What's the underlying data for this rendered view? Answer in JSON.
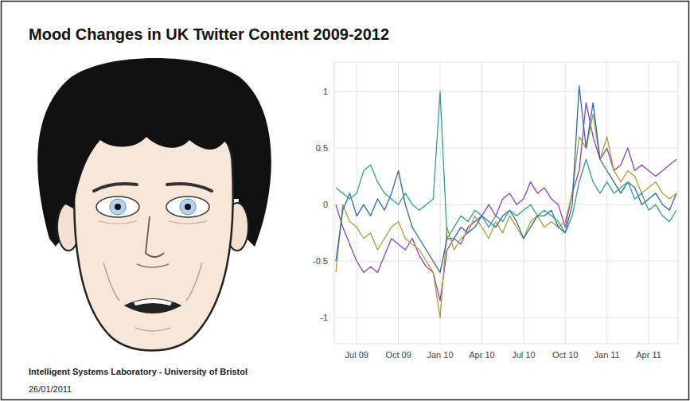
{
  "chart_data": {
    "type": "line",
    "title": "Mood Changes in UK Twitter Content 2009-2012",
    "annotations": [
      "Intelligent Systems Laboratory - University of Bristol",
      "26/01/2011"
    ],
    "categories": [
      null,
      null,
      null,
      "Jul 09",
      null,
      null,
      null,
      null,
      null,
      "Oct 09",
      null,
      null,
      null,
      null,
      null,
      "Jan 10",
      null,
      null,
      null,
      null,
      null,
      "Apr 10",
      null,
      null,
      null,
      null,
      null,
      "Jul 10",
      null,
      null,
      null,
      null,
      null,
      "Oct 10",
      null,
      null,
      null,
      null,
      null,
      "Jan 11",
      null,
      null,
      null,
      null,
      null,
      "Apr 11",
      null,
      null,
      null,
      null
    ],
    "series": [
      {
        "color": "#8a46b4",
        "values": [
          0.0,
          -0.2,
          -0.35,
          -0.5,
          -0.6,
          -0.55,
          -0.6,
          -0.45,
          -0.3,
          -0.35,
          -0.4,
          -0.3,
          -0.45,
          -0.55,
          -0.6,
          -0.85,
          -0.4,
          -0.3,
          -0.35,
          -0.2,
          -0.15,
          -0.1,
          0.0,
          -0.1,
          0.05,
          0.1,
          0.0,
          0.05,
          0.2,
          0.1,
          0.15,
          0.05,
          0.0,
          -0.2,
          0.1,
          0.3,
          0.9,
          0.6,
          0.4,
          0.5,
          0.3,
          0.35,
          0.5,
          0.3,
          0.35,
          0.3,
          0.25,
          0.3,
          0.35,
          0.4
        ]
      },
      {
        "color": "#a3a23c",
        "values": [
          -0.6,
          0.0,
          -0.15,
          -0.2,
          -0.3,
          -0.25,
          -0.4,
          -0.3,
          -0.2,
          -0.15,
          -0.3,
          -0.35,
          -0.4,
          -0.5,
          -0.6,
          -1.0,
          -0.2,
          -0.4,
          -0.3,
          -0.25,
          -0.1,
          -0.2,
          -0.3,
          -0.15,
          -0.25,
          -0.1,
          -0.2,
          -0.3,
          -0.15,
          -0.1,
          -0.2,
          -0.15,
          -0.2,
          -0.15,
          0.1,
          0.6,
          0.5,
          0.8,
          0.4,
          0.6,
          0.3,
          0.2,
          0.3,
          0.25,
          0.1,
          0.15,
          0.2,
          0.1,
          0.05,
          0.1
        ]
      },
      {
        "color": "#2f68a8",
        "values": [
          -0.5,
          -0.05,
          0.1,
          -0.1,
          0.0,
          -0.1,
          0.05,
          -0.05,
          0.1,
          0.3,
          0.0,
          -0.2,
          -0.3,
          -0.4,
          -0.5,
          -0.6,
          -0.3,
          -0.3,
          -0.2,
          -0.25,
          -0.2,
          -0.1,
          -0.15,
          -0.2,
          -0.1,
          -0.05,
          -0.15,
          -0.3,
          -0.2,
          -0.1,
          -0.1,
          -0.05,
          -0.2,
          -0.25,
          0.0,
          1.05,
          0.5,
          0.9,
          0.4,
          0.3,
          0.2,
          0.1,
          0.2,
          0.15,
          0.0,
          0.05,
          0.1,
          0.0,
          -0.05,
          0.1
        ]
      },
      {
        "color": "#35a08c",
        "values": [
          0.15,
          0.1,
          0.05,
          0.1,
          0.3,
          0.35,
          0.2,
          0.1,
          0.05,
          0.0,
          0.1,
          0.0,
          -0.05,
          0.0,
          0.05,
          1.0,
          -0.3,
          -0.2,
          -0.1,
          -0.15,
          -0.05,
          -0.1,
          -0.2,
          -0.1,
          -0.15,
          -0.05,
          -0.1,
          -0.05,
          0.0,
          -0.1,
          -0.05,
          -0.1,
          -0.15,
          -0.25,
          -0.1,
          0.2,
          0.4,
          0.2,
          0.1,
          0.2,
          0.1,
          0.15,
          0.2,
          0.05,
          0.1,
          -0.05,
          0.0,
          -0.1,
          -0.15,
          -0.05
        ]
      }
    ],
    "ylim": [
      -1.23,
      1.26
    ],
    "yticks": [
      -1,
      -0.5,
      0,
      0.5,
      1
    ],
    "grid": true
  }
}
